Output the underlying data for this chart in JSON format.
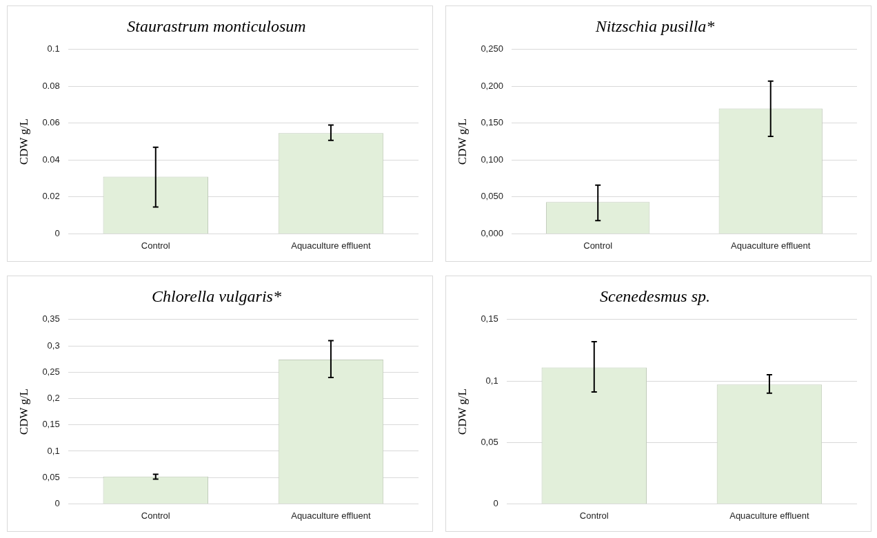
{
  "chart_data": [
    {
      "type": "bar",
      "title": "Staurastrum monticulosum",
      "ylabel": "CDW g/L",
      "categories": [
        "Control",
        "Aquaculture effluent"
      ],
      "values": [
        0.031,
        0.0546
      ],
      "errors": [
        [
          0.0145,
          0.047
        ],
        [
          0.0507,
          0.059
        ]
      ],
      "color": "#e2efda",
      "ylim": [
        0,
        0.1
      ],
      "yticks": [
        0,
        0.02,
        0.04,
        0.06,
        0.08,
        0.1
      ],
      "grid": "y"
    },
    {
      "type": "bar",
      "title": "Nitzschia pusilla*",
      "ylabel": "CDW g/L",
      "categories": [
        "Control",
        "Aquaculture effluent"
      ],
      "values": [
        0.043,
        0.17
      ],
      "errors": [
        [
          0.018,
          0.066
        ],
        [
          0.132,
          0.207
        ]
      ],
      "color": "#e2efda",
      "ylim": [
        0,
        0.25
      ],
      "yticks": [
        {
          "value": 0,
          "label": "0,000"
        },
        {
          "value": 0.05,
          "label": "0,050"
        },
        {
          "value": 0.1,
          "label": "0,100"
        },
        {
          "value": 0.15,
          "label": "0,150"
        },
        {
          "value": 0.2,
          "label": "0,200"
        },
        {
          "value": 0.25,
          "label": "0,250"
        }
      ],
      "grid": "y"
    },
    {
      "type": "bar",
      "title": "Chlorella vulgaris*",
      "ylabel": "CDW g/L",
      "categories": [
        "Control",
        "Aquaculture effluent"
      ],
      "values": [
        0.052,
        0.274
      ],
      "errors": [
        [
          0.047,
          0.056
        ],
        [
          0.24,
          0.31
        ]
      ],
      "color": "#e2efda",
      "ylim": [
        0,
        0.35
      ],
      "yticks": [
        0,
        {
          "value": 0.05,
          "label": "0,05"
        },
        {
          "value": 0.1,
          "label": "0,1"
        },
        {
          "value": 0.15,
          "label": "0,15"
        },
        {
          "value": 0.2,
          "label": "0,2"
        },
        {
          "value": 0.25,
          "label": "0,25"
        },
        {
          "value": 0.3,
          "label": "0,3"
        },
        {
          "value": 0.35,
          "label": "0,35"
        }
      ],
      "grid": "y"
    },
    {
      "type": "bar",
      "title": "Scenedesmus sp.",
      "ylabel": "CDW g/L",
      "categories": [
        "Control",
        "Aquaculture effluent"
      ],
      "values": [
        0.111,
        0.097
      ],
      "errors": [
        [
          0.091,
          0.132
        ],
        [
          0.09,
          0.105
        ]
      ],
      "color": "#e2efda",
      "ylim": [
        0,
        0.15
      ],
      "yticks": [
        0,
        {
          "value": 0.05,
          "label": "0,05"
        },
        {
          "value": 0.1,
          "label": "0,1"
        },
        {
          "value": 0.15,
          "label": "0,15"
        }
      ],
      "grid": "y"
    }
  ]
}
